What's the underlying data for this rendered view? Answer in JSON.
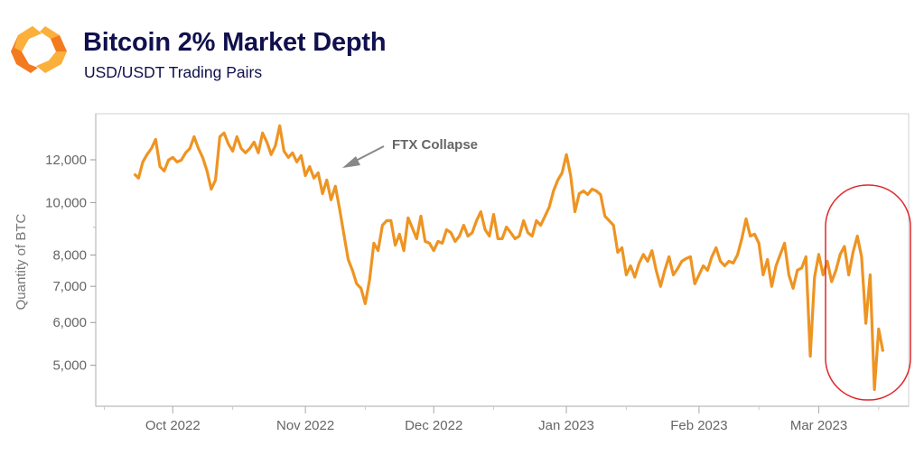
{
  "header": {
    "title": "Bitcoin 2% Market Depth",
    "subtitle": "USD/USDT Trading Pairs"
  },
  "colors": {
    "line": "#ee9422",
    "title": "#10104e",
    "highlight": "#e0262b",
    "logo_dark": "#f47a20",
    "logo_light": "#fbb03b"
  },
  "chart_data": {
    "type": "line",
    "title": "Bitcoin 2% Market Depth",
    "subtitle": "USD/USDT Trading Pairs",
    "xlabel": "",
    "ylabel": "Quantity of BTC",
    "y_scale": "log",
    "ylim": [
      4200,
      14600
    ],
    "xlim": [
      "2022-09-13",
      "2023-03-22"
    ],
    "grid": false,
    "y_ticks": [
      5000,
      6000,
      7000,
      8000,
      10000,
      12000
    ],
    "y_tick_labels": [
      "5,000",
      "6,000",
      "7,000",
      "8,000",
      "10,000",
      "12,000"
    ],
    "x_ticks": [
      "2022-10-01",
      "2022-11-01",
      "2022-12-01",
      "2023-01-01",
      "2023-02-01",
      "2023-03-01"
    ],
    "x_tick_labels": [
      "Oct 2022",
      "Nov 2022",
      "Dec 2022",
      "Jan 2023",
      "Feb 2023",
      "Mar 2023"
    ],
    "annotations": [
      {
        "text": "FTX Collapse",
        "points_to": "2022-11-09",
        "type": "arrow"
      },
      {
        "type": "ellipse-highlight",
        "from": "2023-03-04",
        "to": "2023-03-22"
      }
    ],
    "x": [
      "2022-09-22",
      "2022-09-23",
      "2022-09-24",
      "2022-09-25",
      "2022-09-26",
      "2022-09-27",
      "2022-09-28",
      "2022-09-29",
      "2022-09-30",
      "2022-10-01",
      "2022-10-02",
      "2022-10-03",
      "2022-10-04",
      "2022-10-05",
      "2022-10-06",
      "2022-10-07",
      "2022-10-08",
      "2022-10-09",
      "2022-10-10",
      "2022-10-11",
      "2022-10-12",
      "2022-10-13",
      "2022-10-14",
      "2022-10-15",
      "2022-10-16",
      "2022-10-17",
      "2022-10-18",
      "2022-10-19",
      "2022-10-20",
      "2022-10-21",
      "2022-10-22",
      "2022-10-23",
      "2022-10-24",
      "2022-10-25",
      "2022-10-26",
      "2022-10-27",
      "2022-10-28",
      "2022-10-29",
      "2022-10-30",
      "2022-10-31",
      "2022-11-01",
      "2022-11-02",
      "2022-11-03",
      "2022-11-04",
      "2022-11-05",
      "2022-11-06",
      "2022-11-07",
      "2022-11-08",
      "2022-11-09",
      "2022-11-10",
      "2022-11-11",
      "2022-11-12",
      "2022-11-13",
      "2022-11-14",
      "2022-11-15",
      "2022-11-16",
      "2022-11-17",
      "2022-11-18",
      "2022-11-19",
      "2022-11-20",
      "2022-11-21",
      "2022-11-22",
      "2022-11-23",
      "2022-11-24",
      "2022-11-25",
      "2022-11-26",
      "2022-11-27",
      "2022-11-28",
      "2022-11-29",
      "2022-11-30",
      "2022-12-01",
      "2022-12-02",
      "2022-12-03",
      "2022-12-04",
      "2022-12-05",
      "2022-12-06",
      "2022-12-07",
      "2022-12-08",
      "2022-12-09",
      "2022-12-10",
      "2022-12-11",
      "2022-12-12",
      "2022-12-13",
      "2022-12-14",
      "2022-12-15",
      "2022-12-16",
      "2022-12-17",
      "2022-12-18",
      "2022-12-19",
      "2022-12-20",
      "2022-12-21",
      "2022-12-22",
      "2022-12-23",
      "2022-12-24",
      "2022-12-25",
      "2022-12-26",
      "2022-12-27",
      "2022-12-28",
      "2022-12-29",
      "2022-12-30",
      "2022-12-31",
      "2023-01-01",
      "2023-01-02",
      "2023-01-03",
      "2023-01-04",
      "2023-01-05",
      "2023-01-06",
      "2023-01-07",
      "2023-01-08",
      "2023-01-09",
      "2023-01-10",
      "2023-01-11",
      "2023-01-12",
      "2023-01-13",
      "2023-01-14",
      "2023-01-15",
      "2023-01-16",
      "2023-01-17",
      "2023-01-18",
      "2023-01-19",
      "2023-01-20",
      "2023-01-21",
      "2023-01-22",
      "2023-01-23",
      "2023-01-24",
      "2023-01-25",
      "2023-01-26",
      "2023-01-27",
      "2023-01-28",
      "2023-01-29",
      "2023-01-30",
      "2023-01-31",
      "2023-02-01",
      "2023-02-02",
      "2023-02-03",
      "2023-02-04",
      "2023-02-05",
      "2023-02-06",
      "2023-02-07",
      "2023-02-08",
      "2023-02-09",
      "2023-02-10",
      "2023-02-11",
      "2023-02-12",
      "2023-02-13",
      "2023-02-14",
      "2023-02-15",
      "2023-02-16",
      "2023-02-17",
      "2023-02-18",
      "2023-02-19",
      "2023-02-20",
      "2023-02-21",
      "2023-02-22",
      "2023-02-23",
      "2023-02-24",
      "2023-02-25",
      "2023-02-26",
      "2023-02-27",
      "2023-02-28",
      "2023-03-01",
      "2023-03-02",
      "2023-03-03",
      "2023-03-04",
      "2023-03-05",
      "2023-03-06",
      "2023-03-07",
      "2023-03-08",
      "2023-03-09",
      "2023-03-10",
      "2023-03-11",
      "2023-03-12",
      "2023-03-13",
      "2023-03-14",
      "2023-03-15",
      "2023-03-16"
    ],
    "values": [
      11300,
      11100,
      11890,
      12270,
      12590,
      13090,
      11660,
      11440,
      11980,
      12120,
      11890,
      11980,
      12360,
      12590,
      13240,
      12590,
      12120,
      11440,
      10590,
      11010,
      13240,
      13450,
      12840,
      12450,
      13240,
      12590,
      12360,
      12590,
      12940,
      12360,
      13450,
      12940,
      12270,
      12740,
      13870,
      12450,
      12120,
      12360,
      11890,
      12220,
      11220,
      11660,
      11100,
      11350,
      10390,
      11010,
      10120,
      10720,
      9730,
      8740,
      7850,
      7495,
      7075,
      6940,
      6500,
      7200,
      8410,
      8150,
      9080,
      9260,
      9260,
      8340,
      8740,
      8150,
      9370,
      8980,
      8575,
      9440,
      8475,
      8410,
      8150,
      8475,
      8410,
      8910,
      8800,
      8475,
      8670,
      9080,
      8670,
      8800,
      9260,
      9620,
      8910,
      8670,
      9510,
      8575,
      8575,
      9010,
      8800,
      8575,
      8670,
      9260,
      8800,
      8670,
      9260,
      9080,
      9440,
      9810,
      10510,
      11010,
      11350,
      12270,
      11220,
      9620,
      10390,
      10510,
      10350,
      10590,
      10510,
      10350,
      9440,
      9260,
      9080,
      8090,
      8250,
      7350,
      7640,
      7280,
      7730,
      8020,
      7790,
      8150,
      7495,
      7000,
      7495,
      7940,
      7350,
      7550,
      7790,
      7880,
      7940,
      7075,
      7350,
      7640,
      7495,
      7940,
      8250,
      7790,
      7640,
      7790,
      7730,
      8000,
      8575,
      9330,
      8670,
      8740,
      8410,
      7350,
      7850,
      7000,
      7640,
      8020,
      8410,
      7350,
      6940,
      7495,
      7570,
      7940,
      5200,
      7280,
      8020,
      7350,
      7790,
      7140,
      7495,
      8020,
      8300,
      7350,
      8090,
      8670,
      7940,
      5980,
      7350,
      4510,
      5840,
      5300
    ]
  }
}
